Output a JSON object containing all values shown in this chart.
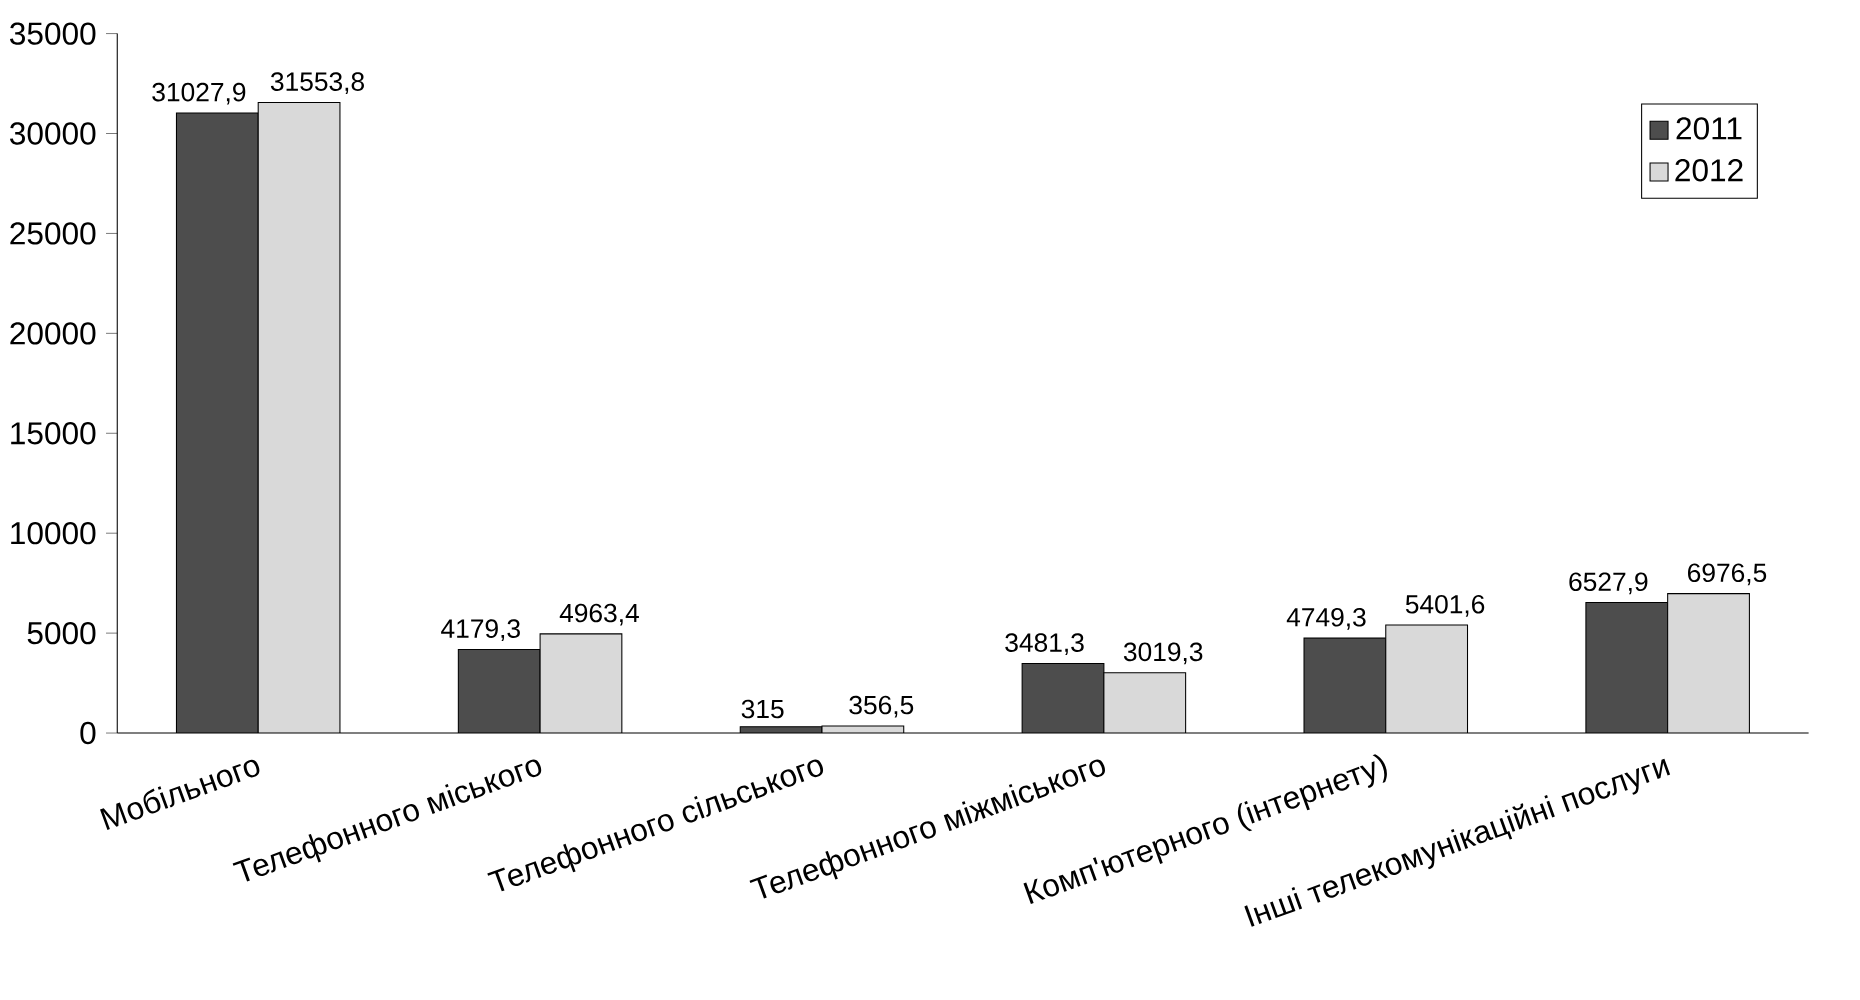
{
  "chart_data": {
    "type": "bar",
    "categories": [
      "Мобільного",
      "Телефонного міського",
      "Телефонного сільського",
      "Телефонного міжміського",
      "Комп'ютерного (інтернету)",
      "Інші телекомунікаційні послуги"
    ],
    "series": [
      {
        "name": "2011",
        "color": "#4d4d4d",
        "values": [
          31027.9,
          4179.3,
          315,
          3481.3,
          4749.3,
          6527.9
        ],
        "value_labels": [
          "31027,9",
          "4179,3",
          "315",
          "3481,3",
          "4749,3",
          "6527,9"
        ]
      },
      {
        "name": "2012",
        "color": "#d9d9d9",
        "values": [
          31553.8,
          4963.4,
          356.5,
          3019.3,
          5401.6,
          6976.5
        ],
        "value_labels": [
          "31553,8",
          "4963,4",
          "356,5",
          "3019,3",
          "5401,6",
          "6976,5"
        ]
      }
    ],
    "ylim": [
      0,
      35000
    ],
    "yticks": [
      0,
      5000,
      10000,
      15000,
      20000,
      25000,
      30000,
      35000
    ],
    "grid": false,
    "legend": "top right"
  }
}
